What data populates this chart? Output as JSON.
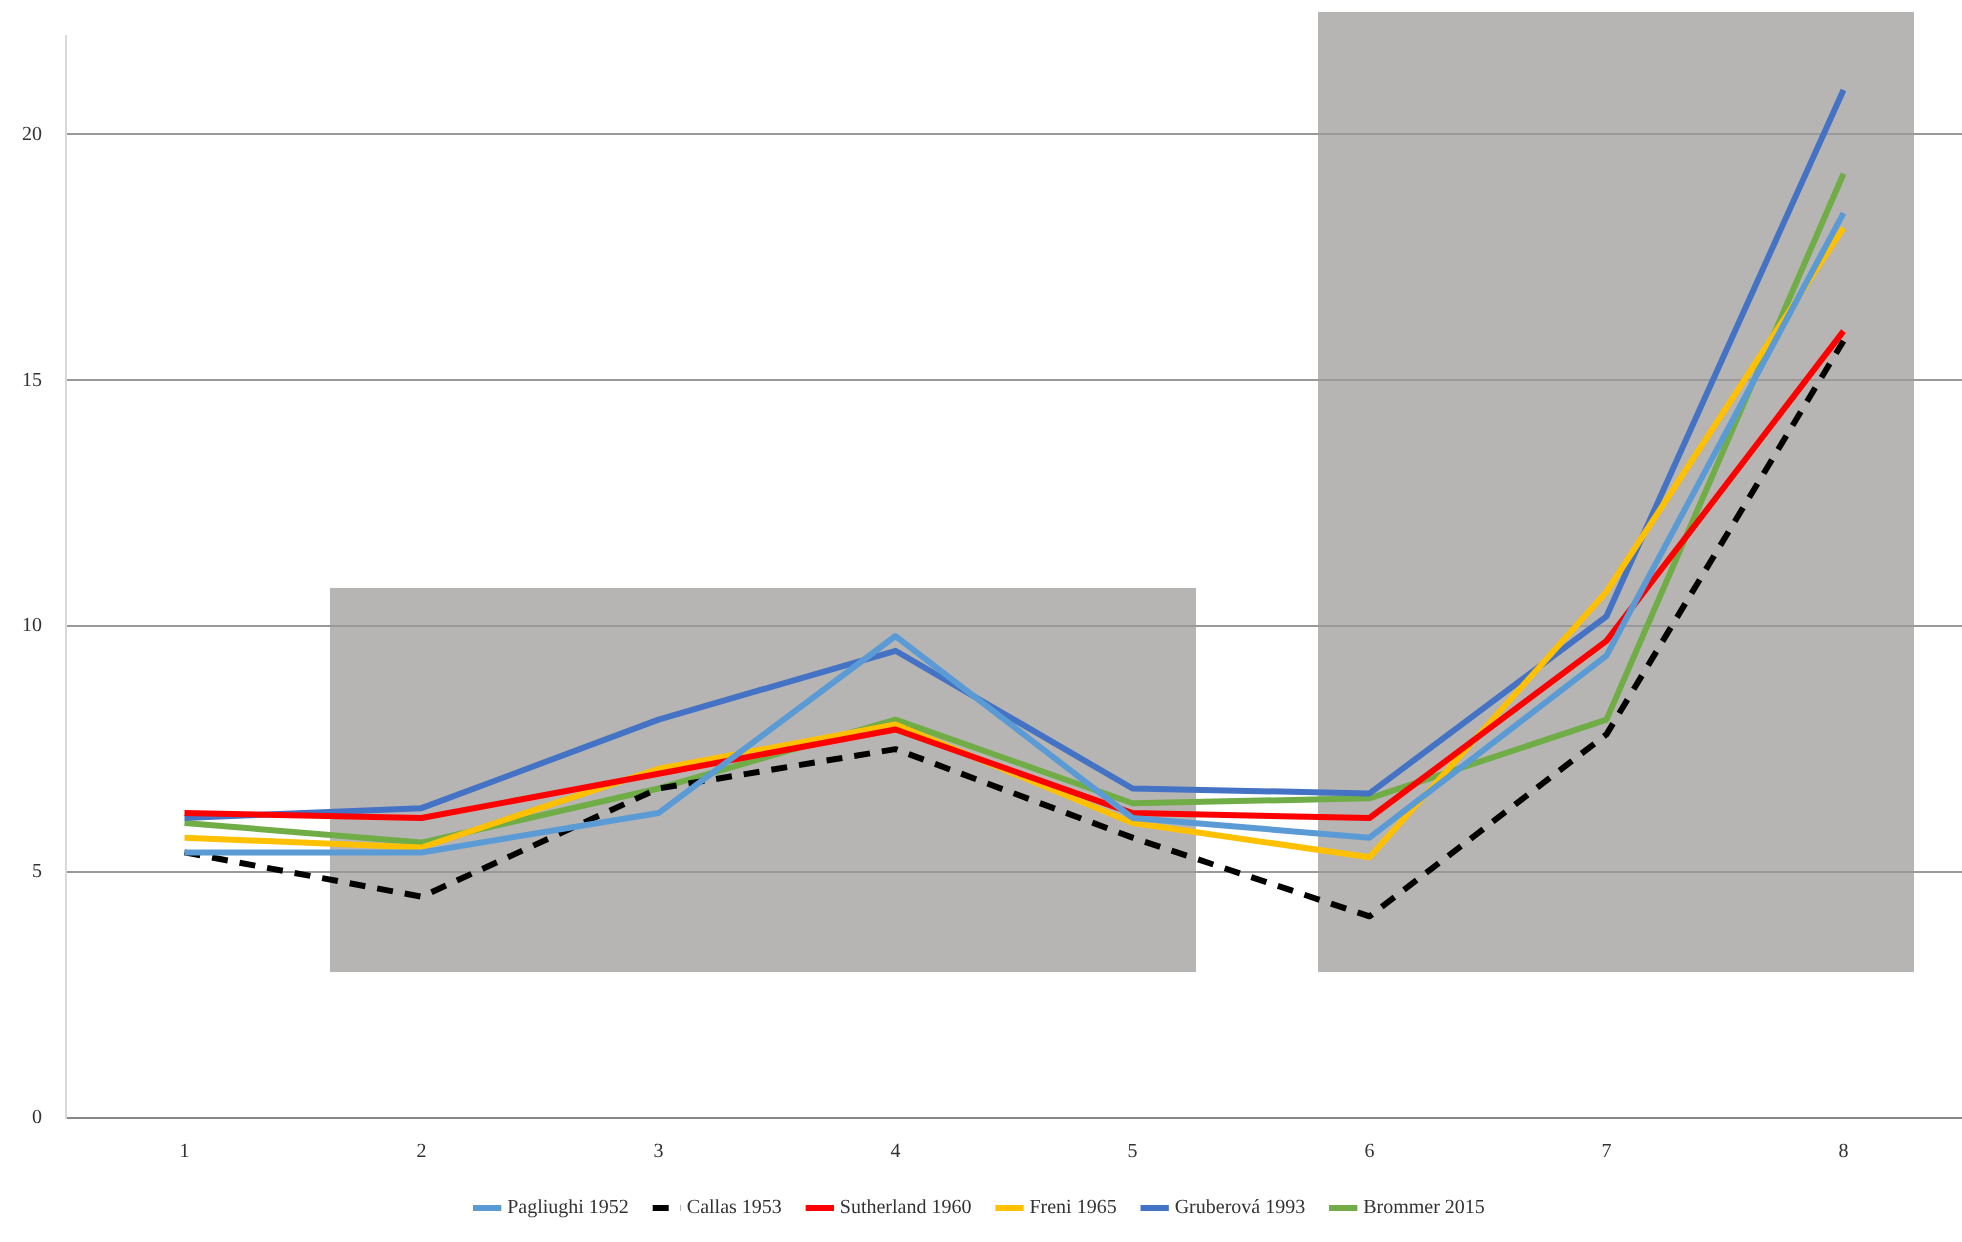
{
  "chart_data": {
    "type": "line",
    "categories": [
      "1",
      "2",
      "3",
      "4",
      "5",
      "6",
      "7",
      "8"
    ],
    "series": [
      {
        "name": "Pagliughi 1952",
        "color": "#5b9bd5",
        "values": [
          5.4,
          5.4,
          6.2,
          9.8,
          6.1,
          5.7,
          9.4,
          18.4
        ]
      },
      {
        "name": "Callas 1953",
        "color": "#000000",
        "line_style": "dashed",
        "values": [
          5.4,
          4.5,
          6.7,
          7.5,
          5.7,
          4.1,
          7.8,
          15.8
        ]
      },
      {
        "name": "Sutherland 1960",
        "color": "#ff0000",
        "values": [
          6.2,
          6.1,
          7.0,
          7.9,
          6.2,
          6.1,
          9.7,
          16.0
        ]
      },
      {
        "name": "Freni 1965",
        "color": "#ffc000",
        "values": [
          5.7,
          5.5,
          7.1,
          8.0,
          6.0,
          5.3,
          10.7,
          18.1
        ]
      },
      {
        "name": "Gruberová 1993",
        "color": "#4472c4",
        "values": [
          6.1,
          6.3,
          8.1,
          9.5,
          6.7,
          6.6,
          10.2,
          20.9
        ]
      },
      {
        "name": "Brommer 2015",
        "color": "#70ad47",
        "values": [
          6.0,
          5.6,
          6.7,
          8.1,
          6.4,
          6.5,
          8.1,
          19.2
        ]
      }
    ],
    "ylim": [
      0,
      22
    ],
    "yticks": [
      0,
      5,
      10,
      15,
      20
    ],
    "grid": "y",
    "legend": "bottom",
    "marker": "none",
    "line_style": "solid"
  }
}
